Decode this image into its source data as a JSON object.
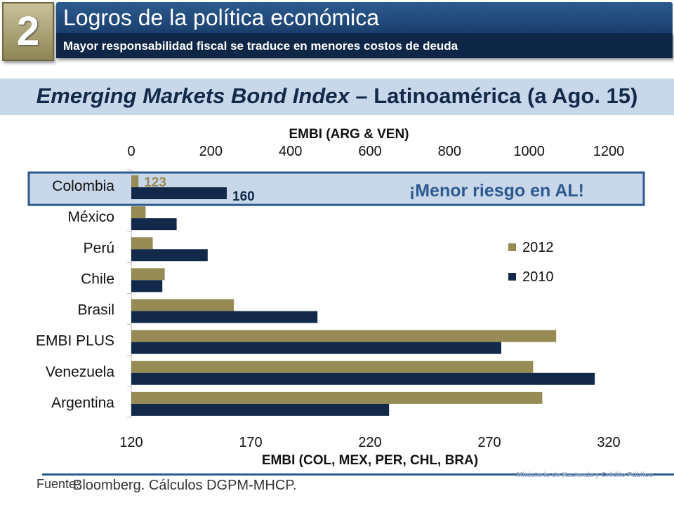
{
  "slide": {
    "number": "2",
    "title": "Logros de la política económica",
    "subtitle": "Mayor responsabilidad fiscal se traduce en menores costos de deuda",
    "chart_heading_italic": "Emerging Markets Bond Index",
    "chart_heading_rest": " – Latinoamérica (a Ago. 15)",
    "source_label": "Fuente:",
    "source_text": "Bloomberg. Cálculos DGPM-MHCP.",
    "ministry": "Ministerio de Hacienda y Crédito Público",
    "callout": "¡Menor riesgo en AL!"
  },
  "colors": {
    "series_2012": "#968a55",
    "series_2010": "#13294a",
    "highlight": "#2c5a8e",
    "callout": "#2c5a8e"
  },
  "chart_data": {
    "type": "bar",
    "orientation": "horizontal",
    "top_axis": {
      "title": "EMBI (ARG & VEN)",
      "range": [
        0,
        1200
      ],
      "ticks": [
        "0",
        "200",
        "400",
        "600",
        "800",
        "1000",
        "1200"
      ]
    },
    "bottom_axis": {
      "title": "EMBI (COL, MEX, PER, CHL, BRA)",
      "range": [
        120,
        320
      ],
      "ticks": [
        "120",
        "170",
        "220",
        "270",
        "320"
      ]
    },
    "categories": [
      "Colombia",
      "México",
      "Perú",
      "Chile",
      "Brasil",
      "EMBI PLUS",
      "Venezuela",
      "Argentina"
    ],
    "axis_used": [
      "bottom",
      "bottom",
      "bottom",
      "bottom",
      "bottom",
      "bottom",
      "top",
      "top"
    ],
    "series": [
      {
        "name": "2012",
        "values": [
          123,
          126,
          129,
          134,
          163,
          298,
          1010,
          1033
        ]
      },
      {
        "name": "2010",
        "values": [
          160,
          139,
          152,
          133,
          198,
          275,
          1165,
          648
        ]
      }
    ],
    "data_labels": [
      {
        "category": "Colombia",
        "series": "2012",
        "text": "123"
      },
      {
        "category": "Colombia",
        "series": "2010",
        "text": "160"
      }
    ],
    "legend": [
      "2012",
      "2010"
    ],
    "legend_position": "right-middle"
  }
}
